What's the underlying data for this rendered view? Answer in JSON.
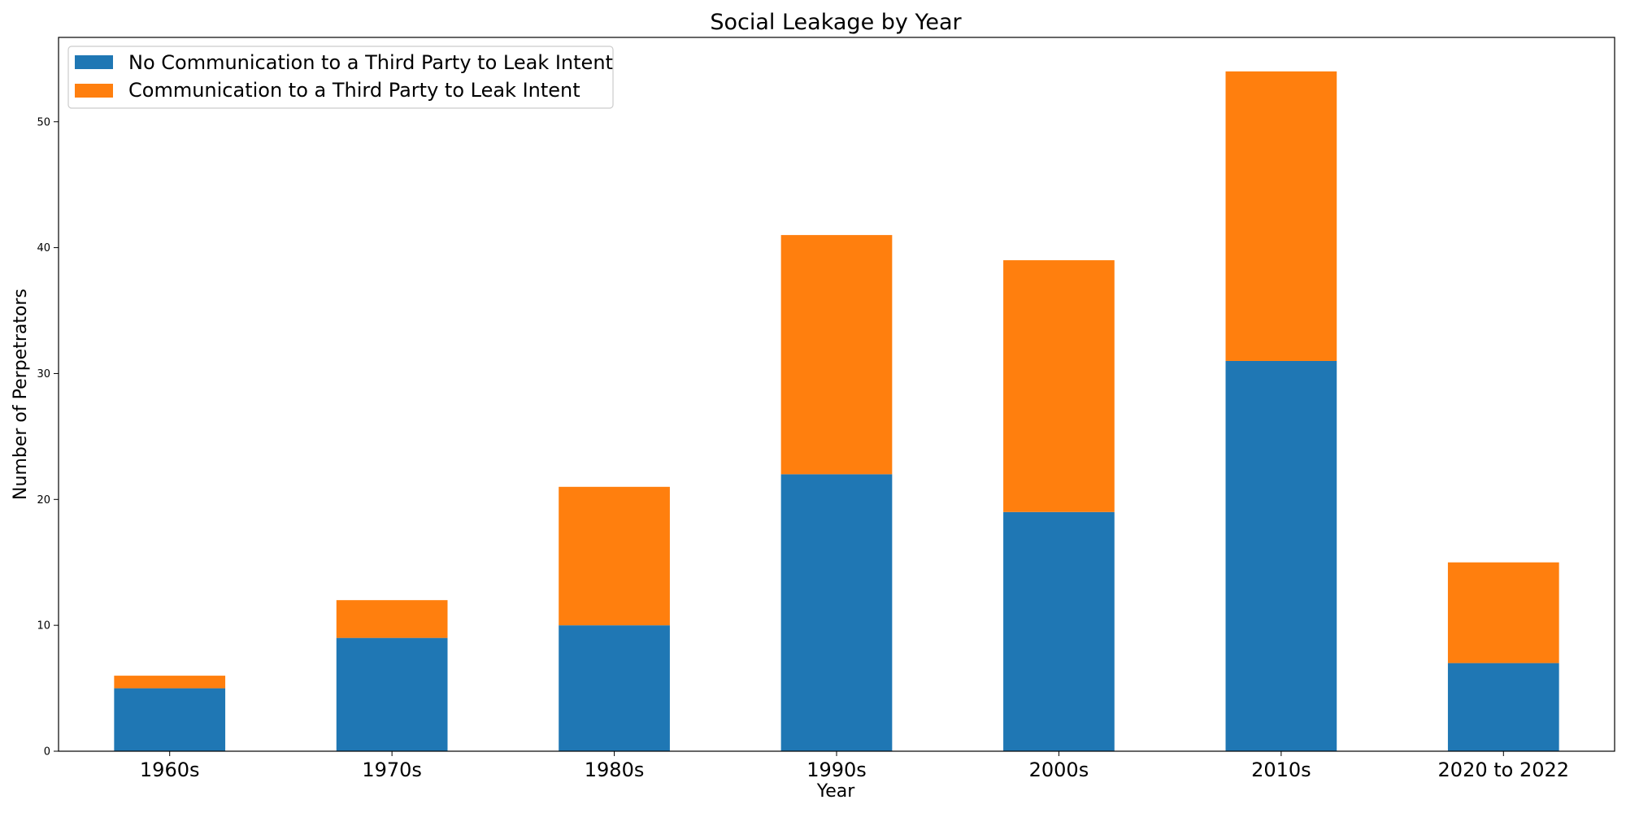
{
  "chart_data": {
    "type": "bar",
    "stacked": true,
    "title": "Social Leakage by Year",
    "xlabel": "Year",
    "ylabel": "Number of Perpetrators",
    "categories": [
      "1960s",
      "1970s",
      "1980s",
      "1990s",
      "2000s",
      "2010s",
      "2020 to 2022"
    ],
    "series": [
      {
        "name": "No Communication to a Third Party to Leak Intent",
        "color": "#1f77b4",
        "values": [
          5,
          9,
          10,
          22,
          19,
          31,
          7
        ]
      },
      {
        "name": "Communication to a Third Party to Leak Intent",
        "color": "#ff7f0e",
        "values": [
          1,
          3,
          11,
          19,
          20,
          23,
          8
        ]
      }
    ],
    "ylim": [
      0,
      56.7
    ],
    "yticks": [
      0,
      10,
      20,
      30,
      40,
      50
    ],
    "grid": false,
    "legend_position": "top-left"
  }
}
